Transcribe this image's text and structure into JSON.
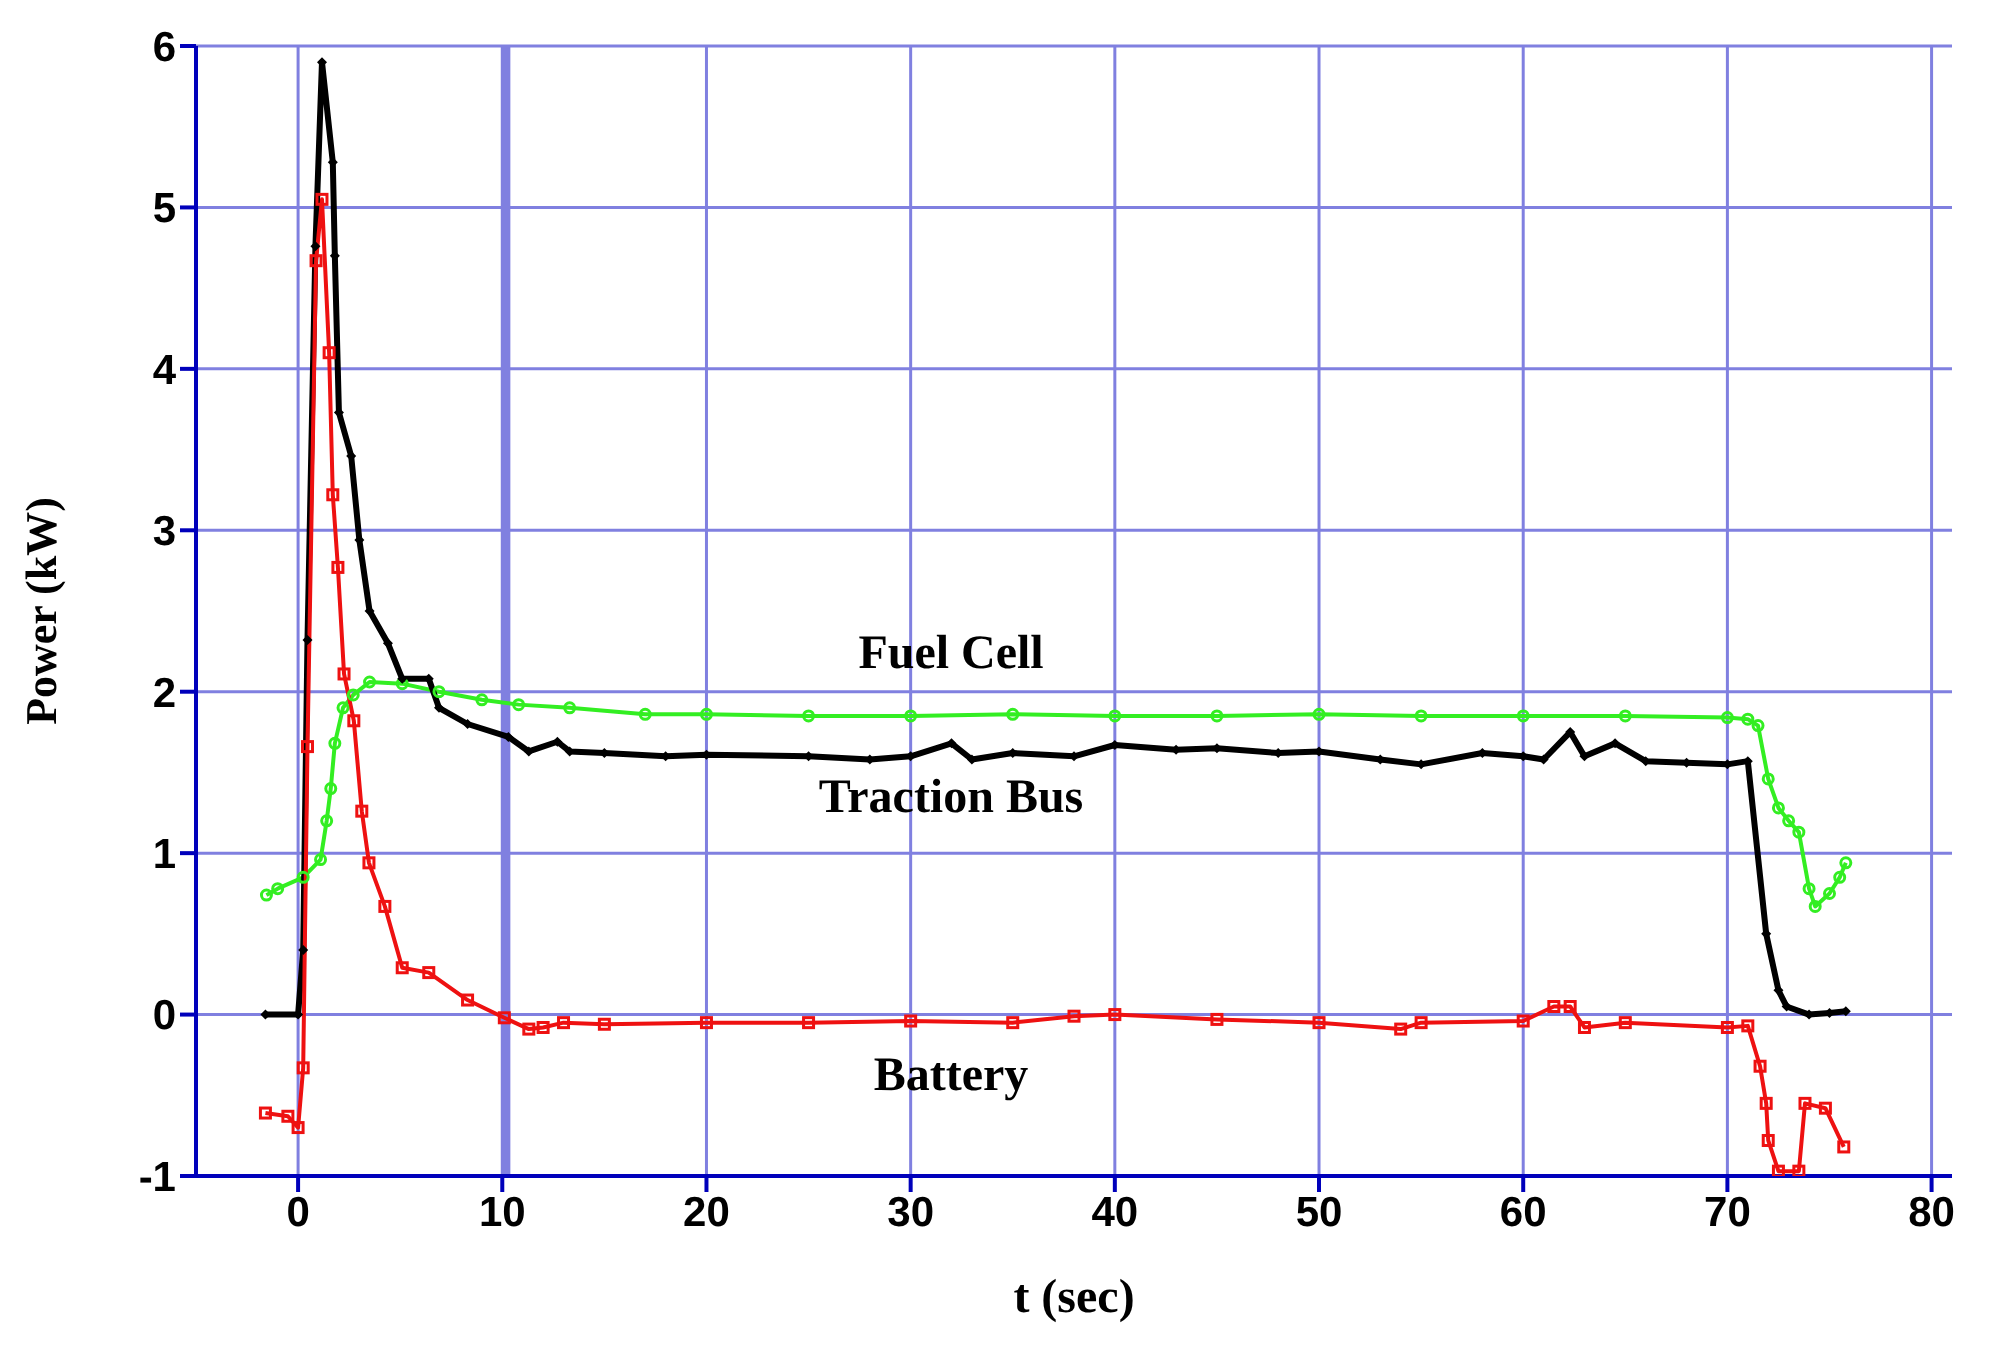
{
  "chart_data": {
    "type": "line",
    "xlabel": "t (sec)",
    "ylabel": "Power (kW)",
    "xlim": [
      -5,
      81
    ],
    "xticks": [
      0,
      10,
      20,
      30,
      40,
      50,
      60,
      70,
      80
    ],
    "ylim": [
      -1,
      6
    ],
    "yticks": [
      -1,
      0,
      1,
      2,
      3,
      4,
      5,
      6
    ],
    "grid": true,
    "line_style": "solid",
    "ref_lines": [
      {
        "axis": "x",
        "value": 10.2,
        "color": "#8080e0"
      }
    ],
    "series": [
      {
        "name": "Fuel Cell",
        "color": "#33ee22",
        "marker": "circle",
        "x": [
          -1.55,
          -1,
          0.25,
          1.1,
          1.4,
          1.6,
          1.8,
          2.2,
          2.7,
          3.5,
          5.1,
          6.9,
          9,
          10.8,
          13.3,
          17,
          20,
          25,
          30,
          35,
          40,
          45,
          50,
          55,
          60,
          65,
          70,
          71,
          71.5,
          72,
          72.5,
          73,
          73.5,
          74,
          74.3,
          75,
          75.5,
          75.8
        ],
        "values": [
          0.74,
          0.78,
          0.85,
          0.96,
          1.2,
          1.4,
          1.68,
          1.9,
          1.98,
          2.06,
          2.05,
          2,
          1.95,
          1.92,
          1.9,
          1.86,
          1.86,
          1.85,
          1.85,
          1.86,
          1.85,
          1.85,
          1.86,
          1.85,
          1.85,
          1.85,
          1.84,
          1.83,
          1.79,
          1.46,
          1.28,
          1.2,
          1.13,
          0.78,
          0.67,
          0.75,
          0.85,
          0.94
        ]
      },
      {
        "name": "Traction Bus",
        "color": "#000000",
        "marker": "diamond",
        "x": [
          -1.6,
          0,
          0.25,
          0.46,
          0.85,
          1.17,
          1.7,
          1.8,
          2,
          2.6,
          3,
          3.5,
          4.4,
          5.1,
          6.4,
          6.9,
          8.3,
          10.3,
          11.3,
          12.7,
          13.3,
          15,
          18,
          20,
          25,
          28,
          30,
          32,
          33,
          35,
          38,
          40,
          43,
          45,
          48,
          50,
          53,
          55,
          58,
          60,
          61,
          62.3,
          63,
          64.5,
          66,
          68,
          70,
          71,
          71.9,
          72.5,
          72.9,
          74,
          75,
          75.8
        ],
        "values": [
          0,
          0,
          0.4,
          2.32,
          4.76,
          5.9,
          5.28,
          4.7,
          3.73,
          3.46,
          2.94,
          2.5,
          2.3,
          2.08,
          2.08,
          1.9,
          1.8,
          1.72,
          1.63,
          1.69,
          1.63,
          1.62,
          1.6,
          1.61,
          1.6,
          1.58,
          1.6,
          1.68,
          1.58,
          1.62,
          1.6,
          1.67,
          1.64,
          1.65,
          1.62,
          1.63,
          1.58,
          1.55,
          1.62,
          1.6,
          1.58,
          1.75,
          1.6,
          1.68,
          1.57,
          1.56,
          1.55,
          1.57,
          0.5,
          0.15,
          0.05,
          0,
          0.01,
          0.02
        ]
      },
      {
        "name": "Battery",
        "color": "#ee1111",
        "marker": "square",
        "x": [
          -1.6,
          -0.5,
          0,
          0.25,
          0.46,
          0.88,
          1.17,
          1.52,
          1.7,
          1.95,
          2.25,
          2.73,
          3.12,
          3.47,
          4.25,
          5.1,
          6.4,
          8.3,
          10.1,
          11.3,
          12,
          13,
          15,
          20,
          25,
          30,
          35,
          38,
          40,
          45,
          50,
          54,
          55,
          60,
          61.5,
          62.3,
          63,
          65,
          70,
          71,
          71.6,
          71.9,
          72,
          72.5,
          73.5,
          73.8,
          74.8,
          75.7
        ],
        "values": [
          -0.61,
          -0.63,
          -0.7,
          -0.33,
          1.66,
          4.67,
          5.05,
          4.1,
          3.22,
          2.77,
          2.11,
          1.82,
          1.26,
          0.94,
          0.67,
          0.29,
          0.26,
          0.09,
          -0.02,
          -0.09,
          -0.08,
          -0.05,
          -0.06,
          -0.05,
          -0.05,
          -0.04,
          -0.05,
          -0.01,
          0,
          -0.03,
          -0.05,
          -0.09,
          -0.05,
          -0.04,
          0.05,
          0.05,
          -0.08,
          -0.05,
          -0.08,
          -0.07,
          -0.32,
          -0.55,
          -0.78,
          -0.97,
          -0.97,
          -0.55,
          -0.58,
          -0.82
        ]
      }
    ]
  }
}
